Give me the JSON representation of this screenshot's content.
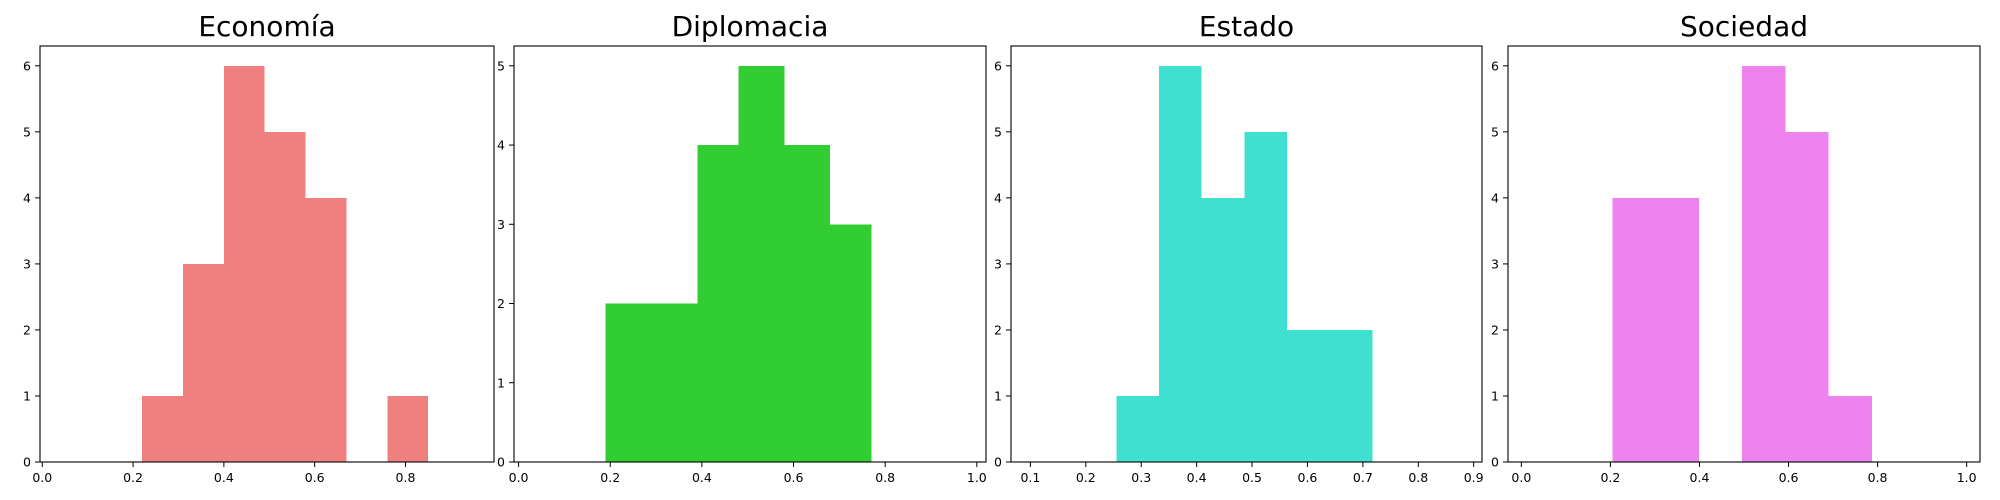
{
  "chart_data": [
    {
      "type": "bar",
      "title": "Economía",
      "color": "#f08080",
      "xlim": [
        -0.005,
        0.995
      ],
      "ylim": [
        0,
        6.3
      ],
      "xticks": [
        "0.0",
        "0.2",
        "0.4",
        "0.6",
        "0.8"
      ],
      "xtick_values": [
        0.0,
        0.2,
        0.4,
        0.6,
        0.8
      ],
      "yticks": [
        "0",
        "1",
        "2",
        "3",
        "4",
        "5",
        "6"
      ],
      "bins": [
        {
          "x0": 0.22,
          "x1": 0.31,
          "count": 1
        },
        {
          "x0": 0.31,
          "x1": 0.4,
          "count": 3
        },
        {
          "x0": 0.4,
          "x1": 0.49,
          "count": 6
        },
        {
          "x0": 0.49,
          "x1": 0.58,
          "count": 5
        },
        {
          "x0": 0.58,
          "x1": 0.67,
          "count": 4
        },
        {
          "x0": 0.76,
          "x1": 0.85,
          "count": 1
        }
      ]
    },
    {
      "type": "bar",
      "title": "Diplomacia",
      "color": "#32cd32",
      "xlim": [
        -0.01,
        1.02
      ],
      "ylim": [
        0,
        5.25
      ],
      "xticks": [
        "0.0",
        "0.2",
        "0.4",
        "0.6",
        "0.8",
        "1.0"
      ],
      "xtick_values": [
        0.0,
        0.2,
        0.4,
        0.6,
        0.8,
        1.0
      ],
      "yticks": [
        "0",
        "1",
        "2",
        "3",
        "4",
        "5"
      ],
      "bins": [
        {
          "x0": 0.19,
          "x1": 0.29,
          "count": 2
        },
        {
          "x0": 0.29,
          "x1": 0.39,
          "count": 2
        },
        {
          "x0": 0.39,
          "x1": 0.48,
          "count": 4
        },
        {
          "x0": 0.48,
          "x1": 0.58,
          "count": 5
        },
        {
          "x0": 0.58,
          "x1": 0.68,
          "count": 4
        },
        {
          "x0": 0.68,
          "x1": 0.77,
          "count": 3
        }
      ]
    },
    {
      "type": "bar",
      "title": "Estado",
      "color": "#40e0d0",
      "xlim": [
        0.065,
        0.915
      ],
      "ylim": [
        0,
        6.3
      ],
      "xticks": [
        "0.1",
        "0.2",
        "0.3",
        "0.4",
        "0.5",
        "0.6",
        "0.7",
        "0.8",
        "0.9"
      ],
      "xtick_values": [
        0.1,
        0.2,
        0.3,
        0.4,
        0.5,
        0.6,
        0.7,
        0.8,
        0.9
      ],
      "yticks": [
        "0",
        "1",
        "2",
        "3",
        "4",
        "5",
        "6"
      ],
      "bins": [
        {
          "x0": 0.255,
          "x1": 0.332,
          "count": 1
        },
        {
          "x0": 0.332,
          "x1": 0.409,
          "count": 6
        },
        {
          "x0": 0.409,
          "x1": 0.486,
          "count": 4
        },
        {
          "x0": 0.486,
          "x1": 0.563,
          "count": 5
        },
        {
          "x0": 0.563,
          "x1": 0.64,
          "count": 2
        },
        {
          "x0": 0.64,
          "x1": 0.717,
          "count": 2
        }
      ]
    },
    {
      "type": "bar",
      "title": "Sociedad",
      "color": "#ee82ee",
      "xlim": [
        -0.03,
        1.03
      ],
      "ylim": [
        0,
        6.3
      ],
      "xticks": [
        "0.0",
        "0.2",
        "0.4",
        "0.6",
        "0.8",
        "1.0"
      ],
      "xtick_values": [
        0.0,
        0.2,
        0.4,
        0.6,
        0.8,
        1.0
      ],
      "yticks": [
        "0",
        "1",
        "2",
        "3",
        "4",
        "5",
        "6"
      ],
      "bins": [
        {
          "x0": 0.205,
          "x1": 0.302,
          "count": 4
        },
        {
          "x0": 0.302,
          "x1": 0.399,
          "count": 4
        },
        {
          "x0": 0.496,
          "x1": 0.593,
          "count": 6
        },
        {
          "x0": 0.593,
          "x1": 0.69,
          "count": 5
        },
        {
          "x0": 0.69,
          "x1": 0.787,
          "count": 1
        }
      ]
    }
  ]
}
